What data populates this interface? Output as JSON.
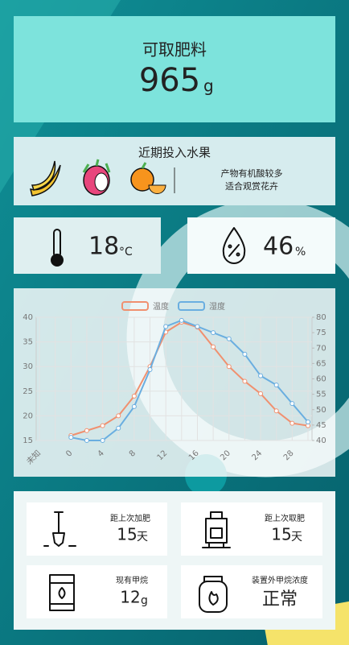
{
  "fertilizer": {
    "label": "可取肥料",
    "value": 965,
    "unit": "g"
  },
  "fruits": {
    "title": "近期投入水果",
    "notes": [
      "产物有机酸较多",
      "适合观赏花卉"
    ]
  },
  "temperature": {
    "value": 18,
    "unit": "°C"
  },
  "humidity": {
    "value": 46,
    "unit": "%"
  },
  "chart_data": {
    "type": "line",
    "categories": [
      "未知",
      null,
      "0",
      null,
      "4",
      null,
      "8",
      null,
      "12",
      null,
      "16",
      null,
      "20",
      null,
      "24",
      null,
      "28",
      null
    ],
    "series": [
      {
        "name": "温度",
        "color": "#f0906f",
        "values": [
          null,
          null,
          16,
          17,
          18,
          20,
          24,
          30,
          37,
          39,
          38,
          34,
          30,
          27,
          24.5,
          21,
          18.5,
          18
        ]
      },
      {
        "name": "湿度",
        "color": "#6aaee0",
        "axis": "y2",
        "values": [
          null,
          null,
          41,
          40,
          40,
          44,
          51,
          63,
          77,
          79,
          77,
          75,
          73,
          68,
          61,
          58,
          52,
          46
        ]
      }
    ],
    "ylim": [
      15,
      40
    ],
    "yticks": [
      15,
      20,
      25,
      30,
      35,
      40
    ],
    "y2lim": [
      40,
      80
    ],
    "y2ticks": [
      40,
      45,
      50,
      55,
      60,
      65,
      70,
      75,
      80
    ],
    "grid": true,
    "legend": "top"
  },
  "stats": [
    {
      "label": "距上次加肥",
      "value": 15,
      "unit": "天"
    },
    {
      "label": "距上次取肥",
      "value": 15,
      "unit": "天"
    },
    {
      "label": "现有甲烷",
      "value": 12,
      "unit": "g"
    },
    {
      "label": "装置外甲烷浓度",
      "value": "正常"
    }
  ]
}
